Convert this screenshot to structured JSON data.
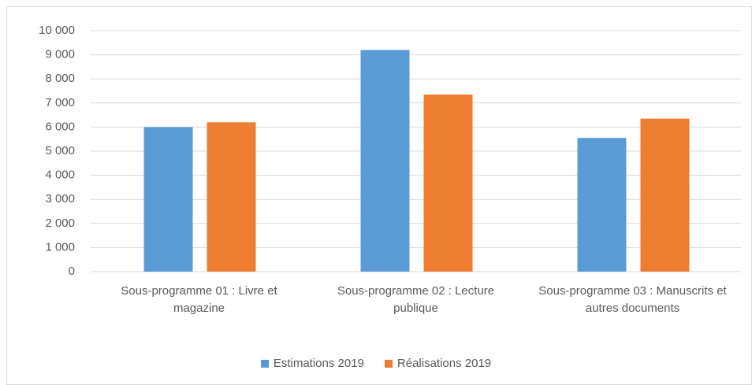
{
  "chart_data": {
    "type": "bar",
    "categories": [
      "Sous-programme 01 : Livre et magazine",
      "Sous-programme 02 : Lecture publique",
      "Sous-programme 03 : Manuscrits et autres documents"
    ],
    "series": [
      {
        "name": "Estimations 2019",
        "color": "#5b9bd5",
        "values": [
          6000,
          9200,
          5550
        ]
      },
      {
        "name": "Réalisations 2019",
        "color": "#ed7d31",
        "values": [
          6200,
          7350,
          6350
        ]
      }
    ],
    "ylim": [
      0,
      10000
    ],
    "yticks": [
      0,
      {
        "value": 1000,
        "label": "1 000"
      },
      {
        "value": 2000,
        "label": "2 000"
      },
      {
        "value": 3000,
        "label": "3 000"
      },
      {
        "value": 4000,
        "label": "4 000"
      },
      {
        "value": 5000,
        "label": "5 000"
      },
      {
        "value": 6000,
        "label": "6 000"
      },
      {
        "value": 7000,
        "label": "7 000"
      },
      {
        "value": 8000,
        "label": "8 000"
      },
      {
        "value": 9000,
        "label": "9 000"
      },
      {
        "value": 10000,
        "label": "10 000"
      }
    ],
    "grid": true,
    "legend": "bottom"
  }
}
